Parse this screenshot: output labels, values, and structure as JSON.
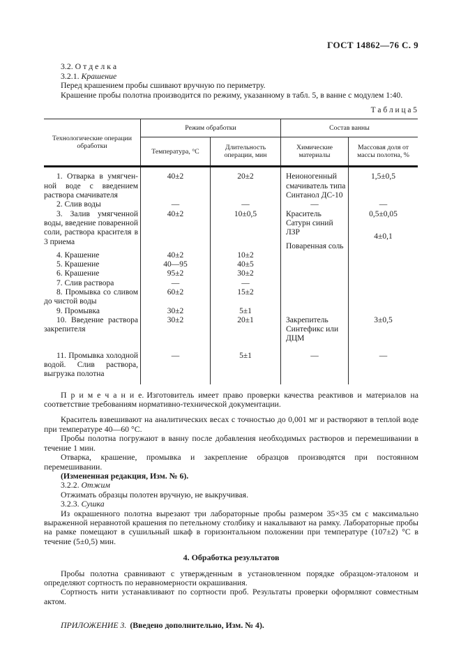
{
  "header": {
    "title": "ГОСТ 14862—76 С. 9"
  },
  "intro": {
    "heading_3_2": "3.2. О т д е л к а",
    "heading_3_2_1_num": "3.2.1.",
    "heading_3_2_1_label": "Крашение",
    "p1": "Перед крашением пробы сшивают вручную по периметру.",
    "p2": "Крашение пробы полотна производится по режиму, указанному в табл. 5, в ванне с модулем 1:40."
  },
  "table": {
    "caption": "Т а б л и ц а   5",
    "col_operation": "Технологические операции обработки",
    "group_mode": "Режим обработки",
    "group_bath": "Состав ванны",
    "col_temp": "Температура, °С",
    "col_duration": "Длительность операции, мин",
    "col_chem": "Химические материалы",
    "col_mass": "Массовая доля от массы полотна, %",
    "rows": [
      {
        "op": "1. Отварка в умягчен­ной воде с введением раствора смачивателя",
        "temp": "40±2",
        "dur": "20±2",
        "chem": "Неионогенный смачиватель типа Синтанол ДС-10",
        "mass": "1,5±0,5"
      },
      {
        "op": "2. Слив воды",
        "temp": "—",
        "dur": "—",
        "chem": "—",
        "mass": "—"
      },
      {
        "op": "3. Залив умягченной воды, введение поваренной соли, раствора красителя в 3 приема",
        "temp": "40±2",
        "dur": "10±0,5",
        "chem": "Краситель Сатурн синий ЛЗР",
        "mass": "0,5±0,05",
        "chem2": "Поваренная соль",
        "mass2": "4±0,1"
      },
      {
        "op": "4. Крашение",
        "temp": "40±2",
        "dur": "10±2",
        "chem": "",
        "mass": ""
      },
      {
        "op": "5. Крашение",
        "temp": "40—95",
        "dur": "40±5",
        "chem": "",
        "mass": ""
      },
      {
        "op": "6. Крашение",
        "temp": "95±2",
        "dur": "30±2",
        "chem": "",
        "mass": ""
      },
      {
        "op": "7. Слив раствора",
        "temp": "—",
        "dur": "—",
        "chem": "",
        "mass": ""
      },
      {
        "op": "8. Промывка со сливом до чистой воды",
        "temp": "60±2",
        "dur": "15±2",
        "chem": "",
        "mass": ""
      },
      {
        "op": "9. Промывка",
        "temp": "30±2",
        "dur": "5±1",
        "chem": "",
        "mass": ""
      },
      {
        "op": "10. Введение раствора закрепителя",
        "temp": "30±2",
        "dur": "20±1",
        "chem": "Закрепитель Синтефикс или ДЦМ",
        "mass": "3±0,5"
      },
      {
        "op": "11. Промывка холодной водой. Слив раствора, выгрузка полотна",
        "temp": "—",
        "dur": "5±1",
        "chem": "—",
        "mass": "—"
      }
    ]
  },
  "note": {
    "label": "П р и м е ч а н и е.",
    "text": "Изготовитель имеет право проверки качества реактивов и материалов на соответствие требованиям нормативно-технической документации."
  },
  "body": {
    "p1": "Краситель взвешивают на аналитических весах с точностью до 0,001 мг и растворяют в теплой воде при температуре 40—60 °С.",
    "p2": "Пробы полотна погружают в ванну после добавления необходимых растворов и перемешивании в течение 1 мин.",
    "p3": "Отварка, крашение, промывка и закрепление образцов производятся при постоянном перемешивании.",
    "p4_bold": "(Измененная редакция, Изм. № 6).",
    "s322_num": "3.2.2.",
    "s322_label": "Отжим",
    "p5": "Отжимать образцы полотен вручную, не выкручивая.",
    "s323_num": "3.2.3.",
    "s323_label": "Сушка",
    "p6": "Из окрашенного полотна вырезают три лабораторные пробы размером 35×35 см с максимально выражен­ной неравнотой крашения по петельному столбику и накалывают на рамку. Лабораторные пробы на рамке помещают в сушильный шкаф в горизонтальном положении при температуре (107±2) °С в течение (5±0,5) мин."
  },
  "section4": {
    "heading": "4.  Обработка результатов",
    "p1": "Пробы полотна сравнивают с утвержденным в установленном порядке образцом-эталоном и определяют сортность по неравномерности окрашивания.",
    "p2": "Сортность нити устанавливают по сортности проб. Результаты проверки оформляют совместным актом."
  },
  "appendix": {
    "label_italic": "ПРИЛОЖЕНИЕ 3.",
    "label_bold": "(Введено дополнительно, Изм. № 4)."
  }
}
